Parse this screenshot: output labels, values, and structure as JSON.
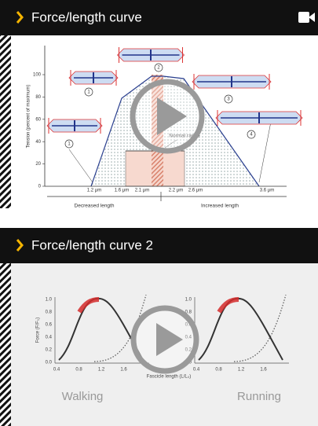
{
  "cards": [
    {
      "title": "Force/length curve",
      "thumbnail": {
        "y_axis_label": "Tension (percent of maximum)",
        "y_ticks": [
          "0",
          "20",
          "40",
          "60",
          "80",
          "100"
        ],
        "x_ticks": [
          "1.2 μm",
          "1.6 μm",
          "2.1 μm",
          "2.2 μm",
          "2.6 μm",
          "3.6 μm"
        ],
        "annotation": "Normal range",
        "left_arrow_label": "Decreased length",
        "right_arrow_label": "Increased length",
        "markers": [
          "1",
          "1",
          "2",
          "3",
          "4"
        ]
      }
    },
    {
      "title": "Force/length curve 2",
      "thumbnail": {
        "y_axis_label": "Force (F/F₀)",
        "x_axis_label": "Fascicle length (L/L₀)",
        "y_ticks": [
          "0.0",
          "0.2",
          "0.4",
          "0.6",
          "0.8",
          "1.0"
        ],
        "x_ticks": [
          "0.4",
          "0.8",
          "1.2",
          "1.6"
        ],
        "panels": [
          "Walking",
          "Running"
        ]
      }
    }
  ]
}
